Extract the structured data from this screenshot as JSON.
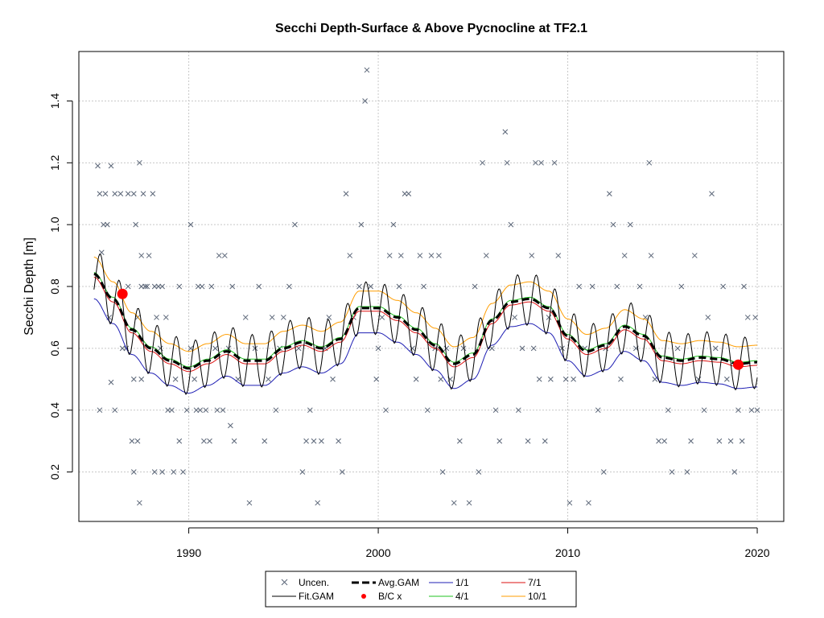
{
  "chart_data": {
    "type": "line",
    "title": "Secchi Depth-Surface & Above Pycnocline at TF2.1",
    "xlabel": "",
    "ylabel": "Secchi Depth [m]",
    "xlim": [
      1984.2,
      2021.4
    ],
    "ylim": [
      0.04,
      1.56
    ],
    "x_ticks": [
      1990,
      2000,
      2010,
      2020
    ],
    "y_ticks": [
      0.2,
      0.4,
      0.6,
      0.8,
      1.0,
      1.2,
      1.4
    ],
    "grid": true,
    "legend": {
      "placement": "bottom-center",
      "entries": [
        {
          "label": "Uncen.",
          "kind": "cross",
          "color": "#5a6577"
        },
        {
          "label": "Fit.GAM",
          "kind": "line",
          "color": "#000000"
        },
        {
          "label": "Avg.GAM",
          "kind": "dashed",
          "color": "#000000"
        },
        {
          "label": "B/C x",
          "kind": "dot",
          "color": "#ff0000"
        },
        {
          "label": "1/1",
          "kind": "line",
          "color": "#1f1fb4"
        },
        {
          "label": "4/1",
          "kind": "line",
          "color": "#22c322"
        },
        {
          "label": "7/1",
          "kind": "line",
          "color": "#dd1111"
        },
        {
          "label": "10/1",
          "kind": "line",
          "color": "#ff9d00"
        }
      ]
    },
    "colors": {
      "uncen": "#5a6577",
      "fit": "#000000",
      "avg": "#000000",
      "bc": "#ff0000",
      "s1_1": "#1f1fb4",
      "s4_1": "#22c322",
      "s7_1": "#dd1111",
      "s10_1": "#ff9d00"
    },
    "avg_gam": {
      "x": [
        1985,
        1986,
        1987,
        1988,
        1989,
        1990,
        1991,
        1992,
        1993,
        1994,
        1995,
        1996,
        1997,
        1998,
        1999,
        2000,
        2001,
        2002,
        2003,
        2004,
        2005,
        2006,
        2007,
        2008,
        2009,
        2010,
        2011,
        2012,
        2013,
        2014,
        2015,
        2016,
        2017,
        2018,
        2019,
        2020
      ],
      "y": [
        0.84,
        0.76,
        0.66,
        0.6,
        0.56,
        0.535,
        0.56,
        0.59,
        0.56,
        0.56,
        0.6,
        0.62,
        0.6,
        0.63,
        0.73,
        0.73,
        0.7,
        0.66,
        0.61,
        0.55,
        0.58,
        0.69,
        0.75,
        0.76,
        0.73,
        0.64,
        0.59,
        0.61,
        0.67,
        0.64,
        0.57,
        0.56,
        0.57,
        0.565,
        0.55,
        0.555
      ]
    },
    "series_offsets": {
      "s1_1": -0.08,
      "s4_1": 0.005,
      "s7_1": -0.01,
      "s10_1": 0.055
    },
    "fit_seasonal_amplitude": 0.085,
    "bc_points": [
      {
        "x": 1986.5,
        "y": 0.776
      },
      {
        "x": 2019.0,
        "y": 0.547
      }
    ],
    "uncen": [
      [
        1985.2,
        1.19
      ],
      [
        1985.3,
        1.1
      ],
      [
        1985.6,
        1.1
      ],
      [
        1985.9,
        1.19
      ],
      [
        1985.5,
        1.0
      ],
      [
        1985.7,
        1.0
      ],
      [
        1986.1,
        1.1
      ],
      [
        1985.4,
        0.91
      ],
      [
        1985.8,
        0.7
      ],
      [
        1985.3,
        0.4
      ],
      [
        1985.9,
        0.49
      ],
      [
        1986.1,
        0.4
      ],
      [
        1986.5,
        0.6
      ],
      [
        1986.7,
        0.6
      ],
      [
        1986.8,
        0.8
      ],
      [
        1986.4,
        1.1
      ],
      [
        1986.8,
        1.1
      ],
      [
        1987.1,
        1.1
      ],
      [
        1987.4,
        1.2
      ],
      [
        1987.6,
        1.1
      ],
      [
        1987.2,
        1.0
      ],
      [
        1987.5,
        0.9
      ],
      [
        1987.9,
        0.9
      ],
      [
        1987.3,
        0.7
      ],
      [
        1987.5,
        0.8
      ],
      [
        1987.7,
        0.8
      ],
      [
        1987.1,
        0.5
      ],
      [
        1987.5,
        0.5
      ],
      [
        1987.0,
        0.3
      ],
      [
        1987.3,
        0.3
      ],
      [
        1987.1,
        0.2
      ],
      [
        1987.4,
        0.1
      ],
      [
        1987.8,
        0.8
      ],
      [
        1988.1,
        1.1
      ],
      [
        1988.2,
        0.8
      ],
      [
        1988.4,
        0.8
      ],
      [
        1988.6,
        0.8
      ],
      [
        1988.8,
        0.7
      ],
      [
        1988.3,
        0.7
      ],
      [
        1988.5,
        0.6
      ],
      [
        1988.2,
        0.2
      ],
      [
        1988.6,
        0.2
      ],
      [
        1988.9,
        0.4
      ],
      [
        1989.1,
        0.4
      ],
      [
        1989.3,
        0.5
      ],
      [
        1989.5,
        0.8
      ],
      [
        1989.2,
        0.2
      ],
      [
        1989.5,
        0.3
      ],
      [
        1989.7,
        0.2
      ],
      [
        1989.9,
        0.4
      ],
      [
        1990.1,
        0.6
      ],
      [
        1990.3,
        0.5
      ],
      [
        1990.1,
        1.0
      ],
      [
        1990.5,
        0.8
      ],
      [
        1990.7,
        0.8
      ],
      [
        1990.4,
        0.4
      ],
      [
        1990.6,
        0.4
      ],
      [
        1990.9,
        0.4
      ],
      [
        1990.8,
        0.3
      ],
      [
        1991.1,
        0.3
      ],
      [
        1991.2,
        0.8
      ],
      [
        1991.4,
        0.6
      ],
      [
        1991.6,
        0.9
      ],
      [
        1991.9,
        0.9
      ],
      [
        1991.5,
        0.4
      ],
      [
        1991.8,
        0.4
      ],
      [
        1992.2,
        0.35
      ],
      [
        1992.1,
        0.6
      ],
      [
        1992.3,
        0.8
      ],
      [
        1992.4,
        0.3
      ],
      [
        1992.6,
        0.5
      ],
      [
        1993.0,
        0.7
      ],
      [
        1993.2,
        0.1
      ],
      [
        1993.5,
        0.6
      ],
      [
        1993.7,
        0.8
      ],
      [
        1994.0,
        0.3
      ],
      [
        1994.2,
        0.5
      ],
      [
        1994.4,
        0.7
      ],
      [
        1994.6,
        0.4
      ],
      [
        1994.8,
        0.6
      ],
      [
        1995.0,
        0.7
      ],
      [
        1995.3,
        0.8
      ],
      [
        1995.6,
        1.0
      ],
      [
        1995.8,
        0.6
      ],
      [
        1996.0,
        0.2
      ],
      [
        1996.2,
        0.3
      ],
      [
        1996.4,
        0.4
      ],
      [
        1996.6,
        0.3
      ],
      [
        1996.8,
        0.1
      ],
      [
        1997.0,
        0.3
      ],
      [
        1997.2,
        0.6
      ],
      [
        1997.4,
        0.7
      ],
      [
        1997.6,
        0.5
      ],
      [
        1997.9,
        0.3
      ],
      [
        1998.1,
        0.2
      ],
      [
        1998.3,
        1.1
      ],
      [
        1998.5,
        0.9
      ],
      [
        1998.7,
        0.7
      ],
      [
        1999.0,
        0.8
      ],
      [
        1999.1,
        1.0
      ],
      [
        1999.4,
        1.5
      ],
      [
        1999.3,
        1.4
      ],
      [
        1999.6,
        0.8
      ],
      [
        1999.9,
        0.5
      ],
      [
        2000.0,
        0.6
      ],
      [
        2000.2,
        0.7
      ],
      [
        2000.4,
        0.4
      ],
      [
        2000.6,
        0.9
      ],
      [
        2000.8,
        1.0
      ],
      [
        2001.1,
        0.8
      ],
      [
        2001.2,
        0.9
      ],
      [
        2001.4,
        1.1
      ],
      [
        2001.6,
        1.1
      ],
      [
        2001.8,
        0.6
      ],
      [
        2002.0,
        0.5
      ],
      [
        2002.2,
        0.9
      ],
      [
        2002.4,
        0.8
      ],
      [
        2002.6,
        0.4
      ],
      [
        2002.8,
        0.9
      ],
      [
        2003.0,
        0.6
      ],
      [
        2003.2,
        0.9
      ],
      [
        2003.3,
        0.5
      ],
      [
        2003.4,
        0.2
      ],
      [
        2003.6,
        0.6
      ],
      [
        2003.8,
        0.5
      ],
      [
        2004.0,
        0.1
      ],
      [
        2004.3,
        0.3
      ],
      [
        2004.5,
        0.6
      ],
      [
        2004.8,
        0.1
      ],
      [
        2005.1,
        0.8
      ],
      [
        2005.3,
        0.2
      ],
      [
        2005.5,
        1.2
      ],
      [
        2005.7,
        0.9
      ],
      [
        2006.0,
        0.6
      ],
      [
        2006.2,
        0.4
      ],
      [
        2006.4,
        0.3
      ],
      [
        2006.7,
        1.3
      ],
      [
        2006.8,
        1.2
      ],
      [
        2007.0,
        1.0
      ],
      [
        2007.2,
        0.7
      ],
      [
        2007.4,
        0.4
      ],
      [
        2007.6,
        0.6
      ],
      [
        2007.9,
        0.3
      ],
      [
        2008.1,
        0.9
      ],
      [
        2008.2,
        0.6
      ],
      [
        2008.3,
        1.2
      ],
      [
        2008.5,
        0.5
      ],
      [
        2008.6,
        1.2
      ],
      [
        2008.8,
        0.3
      ],
      [
        2009.0,
        0.7
      ],
      [
        2009.1,
        0.5
      ],
      [
        2009.3,
        1.2
      ],
      [
        2009.5,
        0.9
      ],
      [
        2009.7,
        0.6
      ],
      [
        2009.9,
        0.5
      ],
      [
        2010.1,
        0.1
      ],
      [
        2010.3,
        0.5
      ],
      [
        2010.6,
        0.8
      ],
      [
        2010.9,
        0.6
      ],
      [
        2011.1,
        0.1
      ],
      [
        2011.3,
        0.8
      ],
      [
        2011.6,
        0.4
      ],
      [
        2011.9,
        0.2
      ],
      [
        2012.0,
        0.6
      ],
      [
        2012.2,
        1.1
      ],
      [
        2012.4,
        1.0
      ],
      [
        2012.6,
        0.8
      ],
      [
        2012.8,
        0.5
      ],
      [
        2013.0,
        0.9
      ],
      [
        2013.3,
        1.0
      ],
      [
        2013.6,
        0.6
      ],
      [
        2013.8,
        0.8
      ],
      [
        2014.1,
        0.7
      ],
      [
        2014.3,
        1.2
      ],
      [
        2014.4,
        0.9
      ],
      [
        2014.6,
        0.5
      ],
      [
        2014.8,
        0.3
      ],
      [
        2015.1,
        0.3
      ],
      [
        2015.3,
        0.4
      ],
      [
        2015.5,
        0.2
      ],
      [
        2015.8,
        0.6
      ],
      [
        2016.0,
        0.8
      ],
      [
        2016.3,
        0.2
      ],
      [
        2016.5,
        0.3
      ],
      [
        2016.7,
        0.9
      ],
      [
        2016.9,
        0.5
      ],
      [
        2017.2,
        0.4
      ],
      [
        2017.4,
        0.7
      ],
      [
        2017.6,
        1.1
      ],
      [
        2017.8,
        0.6
      ],
      [
        2018.0,
        0.3
      ],
      [
        2018.2,
        0.8
      ],
      [
        2018.4,
        0.5
      ],
      [
        2018.6,
        0.3
      ],
      [
        2018.8,
        0.2
      ],
      [
        2019.0,
        0.4
      ],
      [
        2019.2,
        0.3
      ],
      [
        2019.3,
        0.8
      ],
      [
        2019.5,
        0.7
      ],
      [
        2019.7,
        0.4
      ],
      [
        2019.9,
        0.7
      ],
      [
        2020.0,
        0.4
      ]
    ]
  }
}
